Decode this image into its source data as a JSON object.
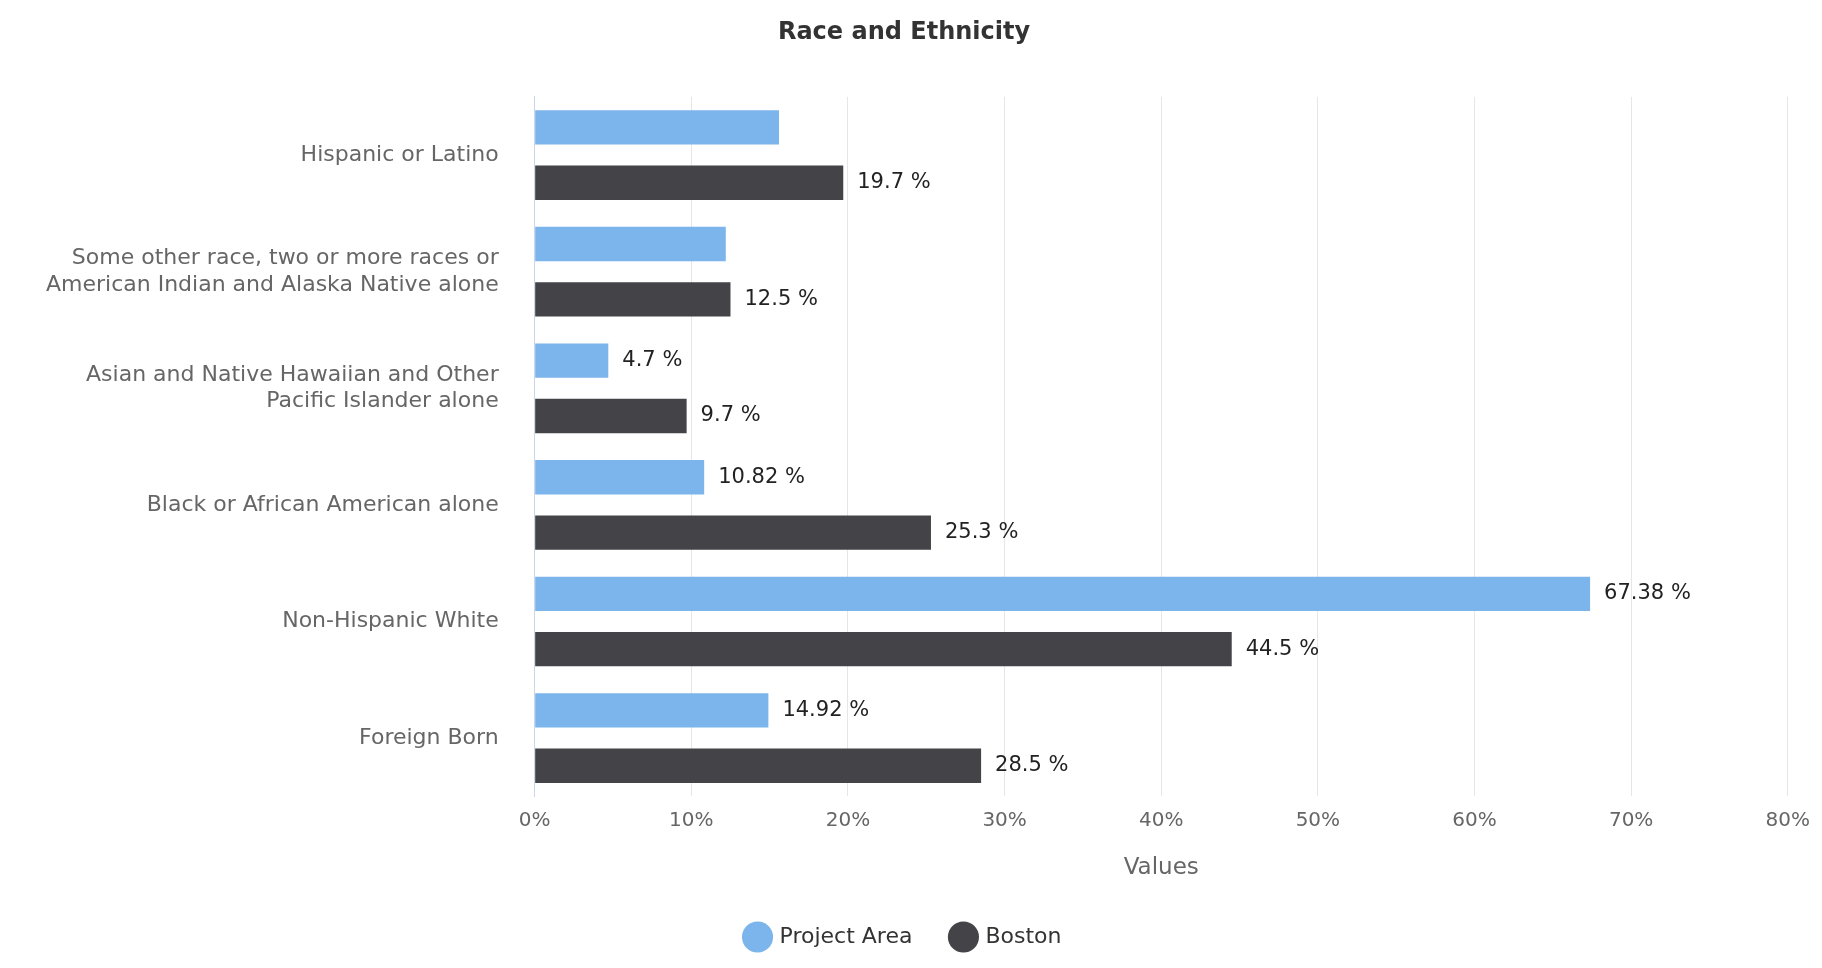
{
  "chart_data": {
    "type": "bar",
    "orientation": "horizontal",
    "title": "Race and Ethnicity",
    "xlabel": "Values",
    "categories": [
      "Hispanic or Latino",
      "Some other race, two or more races or American Indian and Alaska Native alone",
      "Asian and Native Hawaiian and Other Pacific Islander alone",
      "Black or African American alone",
      "Non-Hispanic White",
      "Foreign Born"
    ],
    "series": [
      {
        "name": "Project Area",
        "color": "#7cb5ec",
        "values": [
          15.6,
          12.2,
          4.7,
          10.82,
          67.38,
          14.92
        ],
        "value_labels": [
          null,
          null,
          "4.7 %",
          "10.82 %",
          "67.38 %",
          "14.92 %"
        ]
      },
      {
        "name": "Boston",
        "color": "#434348",
        "values": [
          19.7,
          12.5,
          9.7,
          25.3,
          44.5,
          28.5
        ],
        "value_labels": [
          "19.7 %",
          "12.5 %",
          "9.7 %",
          "25.3 %",
          "44.5 %",
          "28.5 %"
        ]
      }
    ],
    "xlim": [
      0,
      80
    ],
    "xticks": [
      {
        "value": 0,
        "label": "0%"
      },
      {
        "value": 10,
        "label": "10%"
      },
      {
        "value": 20,
        "label": "20%"
      },
      {
        "value": 30,
        "label": "30%"
      },
      {
        "value": 40,
        "label": "40%"
      },
      {
        "value": 50,
        "label": "50%"
      },
      {
        "value": 60,
        "label": "60%"
      },
      {
        "value": 70,
        "label": "70%"
      },
      {
        "value": 80,
        "label": "80%"
      }
    ],
    "grid": "x",
    "legend": "bottom"
  }
}
